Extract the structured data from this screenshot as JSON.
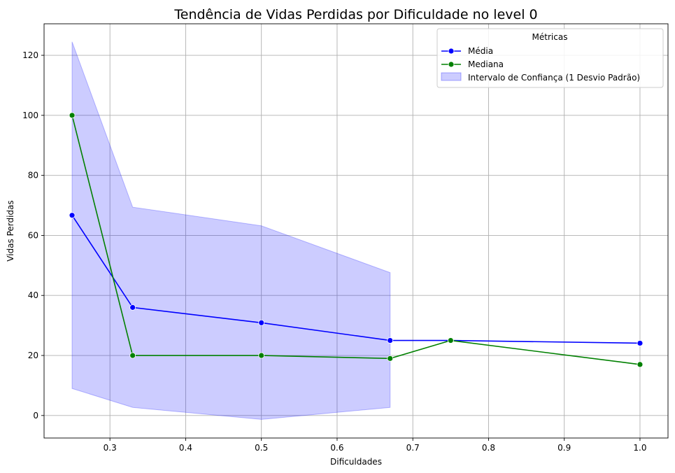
{
  "chart_data": {
    "type": "line",
    "title": "Tendência de Vidas Perdidas por Dificuldade no level 0",
    "xlabel": "Dificuldades",
    "ylabel": "Vidas Perdidas",
    "xlim": [
      0.213,
      1.037
    ],
    "ylim": [
      -7.5,
      130.5
    ],
    "xticks": [
      0.3,
      0.4,
      0.5,
      0.6,
      0.7,
      0.8,
      0.9,
      1.0
    ],
    "xtick_labels": [
      "0.3",
      "0.4",
      "0.5",
      "0.6",
      "0.7",
      "0.8",
      "0.9",
      "1.0"
    ],
    "yticks": [
      0,
      20,
      40,
      60,
      80,
      100,
      120
    ],
    "ytick_labels": [
      "0",
      "20",
      "40",
      "60",
      "80",
      "100",
      "120"
    ],
    "grid": true,
    "legend": {
      "title": "Métricas",
      "placement": "top-right",
      "entries": [
        "Média",
        "Mediana",
        "Intervalo de Confiança (1 Desvio Padrão)"
      ]
    },
    "series": [
      {
        "name": "Média",
        "color": "#0000ff",
        "marker": "circle",
        "x": [
          0.25,
          0.33,
          0.5,
          0.67,
          0.75,
          1.0
        ],
        "values": [
          66.7,
          36.0,
          30.9,
          25.0,
          25.0,
          24.1
        ]
      },
      {
        "name": "Mediana",
        "color": "#008000",
        "marker": "circle",
        "x": [
          0.25,
          0.33,
          0.5,
          0.67,
          0.75,
          1.0
        ],
        "values": [
          100.0,
          20.0,
          20.0,
          19.0,
          25.0,
          17.0
        ]
      }
    ],
    "band": {
      "name": "Intervalo de Confiança (1 Desvio Padrão)",
      "color": "#0000ff",
      "x": [
        0.25,
        0.33,
        0.5,
        0.67
      ],
      "upper": [
        124.5,
        69.4,
        63.2,
        47.6
      ],
      "lower": [
        9.0,
        2.7,
        -1.3,
        2.7
      ]
    }
  }
}
